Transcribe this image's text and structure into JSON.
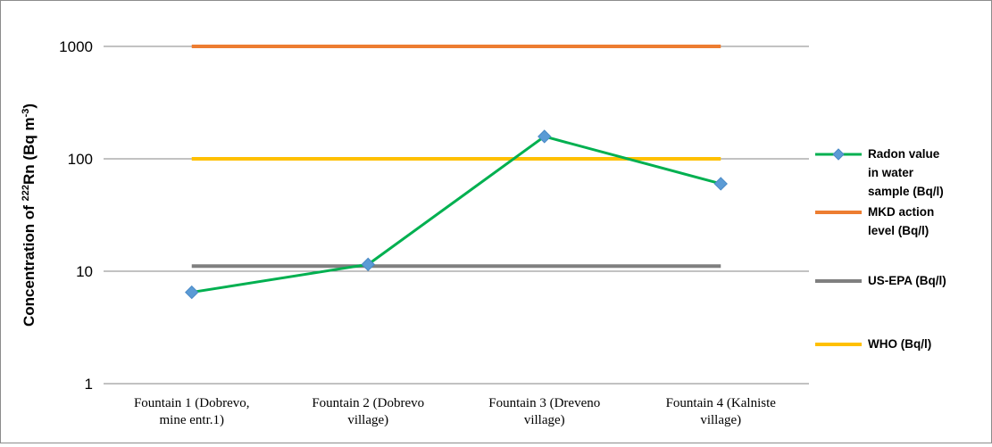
{
  "chart_data": {
    "type": "line",
    "y_scale": "log",
    "ylim": [
      1,
      1000
    ],
    "y_ticks": [
      "1",
      "10",
      "100",
      "1000"
    ],
    "ylabel": {
      "prefix": "Concentration of ",
      "sup_isotope": "222",
      "element": "Rn (Bq m",
      "sup_exp": "-3",
      "suffix": ")"
    },
    "categories": [
      [
        "Fountain 1 (Dobrevo,",
        "mine entr.1)"
      ],
      [
        "Fountain 2 (Dobrevo",
        "village)"
      ],
      [
        "Fountain 3 (Dreveno",
        "village)"
      ],
      [
        "Fountain 4 (Kalniste",
        "village)"
      ]
    ],
    "grid": true,
    "legend_position": "right",
    "series": [
      {
        "name": [
          "Radon value",
          "in water",
          "sample (Bq/l)"
        ],
        "values": [
          6.5,
          11.5,
          158,
          60
        ],
        "color": "#00b050",
        "marker": "diamond",
        "marker_color": "#5b9bd5"
      },
      {
        "name": [
          "MKD action",
          "level (Bq/l)"
        ],
        "values": [
          1000,
          1000,
          1000,
          1000
        ],
        "color": "#ed7d31",
        "marker": "none"
      },
      {
        "name": [
          "US-EPA (Bq/l)"
        ],
        "values": [
          11.1,
          11.1,
          11.1,
          11.1
        ],
        "color": "#7f7f7f",
        "marker": "none"
      },
      {
        "name": [
          "WHO (Bq/l)"
        ],
        "values": [
          100,
          100,
          100,
          100
        ],
        "color": "#ffc000",
        "marker": "none"
      }
    ]
  }
}
